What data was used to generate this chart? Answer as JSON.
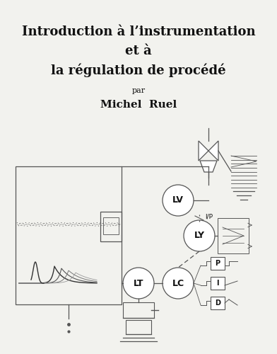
{
  "title_line1": "Introduction à l’instrumentation",
  "title_line2": "et à",
  "title_line3": "la régulation de procédé",
  "par": "par",
  "author": "Michel  Ruel",
  "bg_color": "#f2f2ee",
  "text_color": "#111111",
  "diagram_color": "#555555",
  "title_fontsize": 13,
  "author_fontsize": 11,
  "par_fontsize": 8
}
